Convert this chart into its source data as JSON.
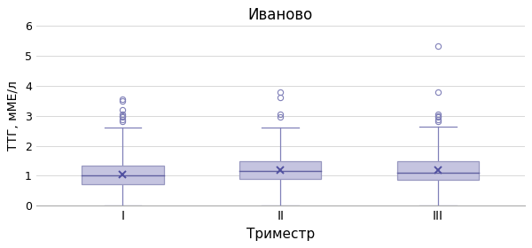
{
  "title": "Иваново",
  "xlabel": "Триместр",
  "ylabel": "ТТГ, мМЕ/л",
  "xtick_labels": [
    "I",
    "II",
    "III"
  ],
  "ylim": [
    0,
    6
  ],
  "yticks": [
    0,
    1,
    2,
    3,
    4,
    5,
    6
  ],
  "box_color": "#9898c0",
  "box_facecolor": "#c5c4e0",
  "median_color": "#6060a0",
  "mean_marker_color": "#5050a0",
  "flier_color": "#8080b8",
  "whisker_color": "#8080b8",
  "grid_color": "#d8d8d8",
  "boxes": [
    {
      "q1": 0.72,
      "median": 1.0,
      "q3": 1.35,
      "mean": 1.05,
      "whisker_low": 0.02,
      "whisker_high": 2.6,
      "fliers": [
        2.82,
        2.88,
        2.95,
        3.0,
        3.05,
        3.2,
        3.5,
        3.55
      ]
    },
    {
      "q1": 0.9,
      "median": 1.15,
      "q3": 1.5,
      "mean": 1.2,
      "whisker_low": 0.02,
      "whisker_high": 2.62,
      "fliers": [
        2.95,
        3.05,
        3.62,
        3.78
      ]
    },
    {
      "q1": 0.85,
      "median": 1.1,
      "q3": 1.5,
      "mean": 1.2,
      "whisker_low": 0.02,
      "whisker_high": 2.65,
      "fliers": [
        2.82,
        2.88,
        2.95,
        3.0,
        3.05,
        3.78,
        5.32
      ]
    }
  ]
}
